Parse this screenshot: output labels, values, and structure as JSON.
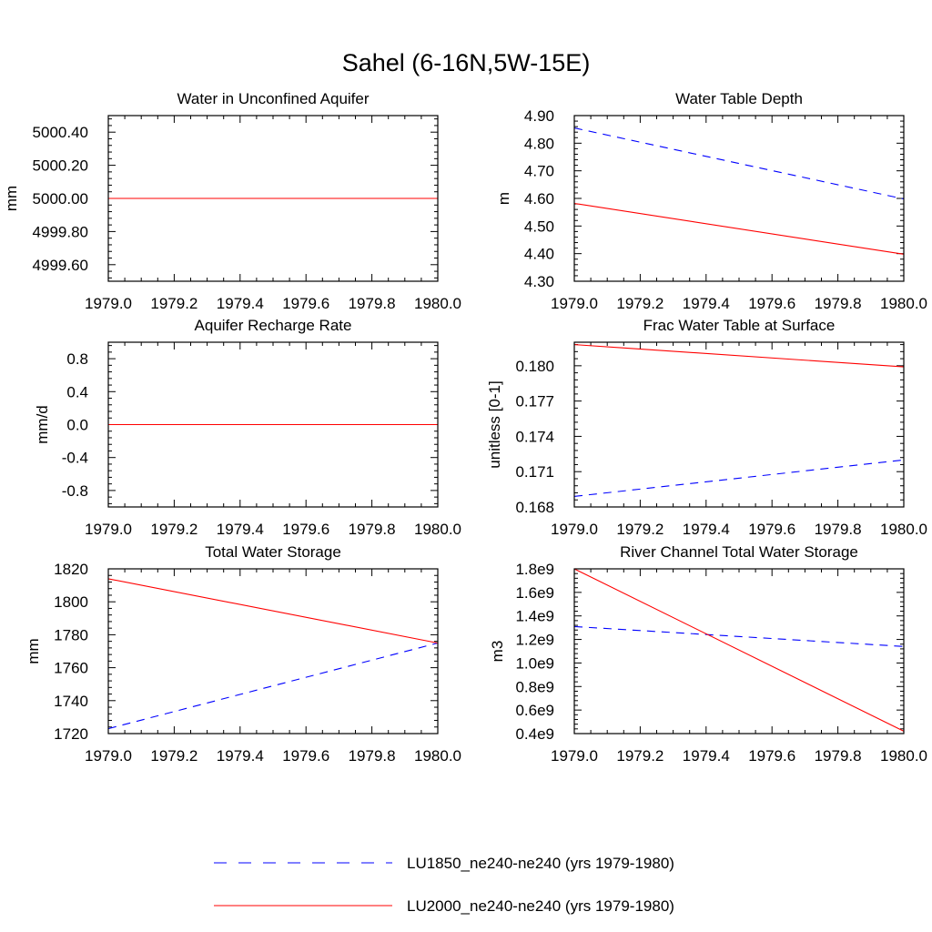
{
  "figure": {
    "title": "Sahel (6-16N,5W-15E)"
  },
  "colors": {
    "LU1850": "#0000ff",
    "LU2000": "#ff0000",
    "axis": "#000000",
    "background": "#ffffff"
  },
  "legend": {
    "placement": "bottom-center",
    "entries": [
      {
        "label": "LU1850_ne240-ne240 (yrs 1979-1980)",
        "color": "#0000ff",
        "style": "dashed"
      },
      {
        "label": "LU2000_ne240-ne240 (yrs 1979-1980)",
        "color": "#ff0000",
        "style": "solid"
      }
    ]
  },
  "chart_data": [
    {
      "type": "line",
      "title": "Water in Unconfined Aquifer",
      "xlabel": "",
      "ylabel": "mm",
      "xlim": [
        1979.0,
        1980.0
      ],
      "ylim": [
        4999.5,
        5000.5
      ],
      "xticks": [
        "1979.0",
        "1979.2",
        "1979.4",
        "1979.6",
        "1979.8",
        "1980.0"
      ],
      "yticks": [
        "4999.60",
        "4999.80",
        "5000.00",
        "5000.20",
        "5000.40"
      ],
      "series": [
        {
          "name": "LU1850_ne240-ne240 (yrs 1979-1980)",
          "x": [
            1979.0,
            1980.0
          ],
          "y": [
            5000.0,
            5000.0
          ]
        },
        {
          "name": "LU2000_ne240-ne240 (yrs 1979-1980)",
          "x": [
            1979.0,
            1980.0
          ],
          "y": [
            5000.0,
            5000.0
          ]
        }
      ]
    },
    {
      "type": "line",
      "title": "Water Table Depth",
      "xlabel": "",
      "ylabel": "m",
      "xlim": [
        1979.0,
        1980.0
      ],
      "ylim": [
        4.3,
        4.9
      ],
      "xticks": [
        "1979.0",
        "1979.2",
        "1979.4",
        "1979.6",
        "1979.8",
        "1980.0"
      ],
      "yticks": [
        "4.30",
        "4.40",
        "4.50",
        "4.60",
        "4.70",
        "4.80",
        "4.90"
      ],
      "series": [
        {
          "name": "LU1850_ne240-ne240 (yrs 1979-1980)",
          "x": [
            1979.0,
            1980.0
          ],
          "y": [
            4.855,
            4.598
          ]
        },
        {
          "name": "LU2000_ne240-ne240 (yrs 1979-1980)",
          "x": [
            1979.0,
            1980.0
          ],
          "y": [
            4.582,
            4.398
          ]
        }
      ]
    },
    {
      "type": "line",
      "title": "Aquifer Recharge Rate",
      "xlabel": "",
      "ylabel": "mm/d",
      "xlim": [
        1979.0,
        1980.0
      ],
      "ylim": [
        -1.0,
        1.0
      ],
      "xticks": [
        "1979.0",
        "1979.2",
        "1979.4",
        "1979.6",
        "1979.8",
        "1980.0"
      ],
      "yticks": [
        "-0.8",
        "-0.4",
        "0.0",
        "0.4",
        "0.8"
      ],
      "series": [
        {
          "name": "LU1850_ne240-ne240 (yrs 1979-1980)",
          "x": [
            1979.0,
            1980.0
          ],
          "y": [
            0.0,
            0.0
          ]
        },
        {
          "name": "LU2000_ne240-ne240 (yrs 1979-1980)",
          "x": [
            1979.0,
            1980.0
          ],
          "y": [
            0.0,
            0.0
          ]
        }
      ]
    },
    {
      "type": "line",
      "title": "Frac Water Table at Surface",
      "xlabel": "",
      "ylabel": "unitless [0-1]",
      "xlim": [
        1979.0,
        1980.0
      ],
      "ylim": [
        0.168,
        0.182
      ],
      "xticks": [
        "1979.0",
        "1979.2",
        "1979.4",
        "1979.6",
        "1979.8",
        "1980.0"
      ],
      "yticks": [
        "0.168",
        "0.171",
        "0.174",
        "0.177",
        "0.180"
      ],
      "series": [
        {
          "name": "LU1850_ne240-ne240 (yrs 1979-1980)",
          "x": [
            1979.0,
            1980.0
          ],
          "y": [
            0.1689,
            0.172
          ]
        },
        {
          "name": "LU2000_ne240-ne240 (yrs 1979-1980)",
          "x": [
            1979.0,
            1980.0
          ],
          "y": [
            0.1818,
            0.1799
          ]
        }
      ]
    },
    {
      "type": "line",
      "title": "Total Water Storage",
      "xlabel": "",
      "ylabel": "mm",
      "xlim": [
        1979.0,
        1980.0
      ],
      "ylim": [
        1720,
        1820
      ],
      "xticks": [
        "1979.0",
        "1979.2",
        "1979.4",
        "1979.6",
        "1979.8",
        "1980.0"
      ],
      "yticks": [
        "1720",
        "1740",
        "1760",
        "1780",
        "1800",
        "1820"
      ],
      "series": [
        {
          "name": "LU1850_ne240-ne240 (yrs 1979-1980)",
          "x": [
            1979.0,
            1980.0
          ],
          "y": [
            1723,
            1775
          ]
        },
        {
          "name": "LU2000_ne240-ne240 (yrs 1979-1980)",
          "x": [
            1979.0,
            1980.0
          ],
          "y": [
            1814,
            1775
          ]
        }
      ]
    },
    {
      "type": "line",
      "title": "River Channel Total Water Storage",
      "xlabel": "",
      "ylabel": "m3",
      "xlim": [
        1979.0,
        1980.0
      ],
      "ylim": [
        400000000.0,
        1800000000.0
      ],
      "xticks": [
        "1979.0",
        "1979.2",
        "1979.4",
        "1979.6",
        "1979.8",
        "1980.0"
      ],
      "yticks": [
        "0.4e9",
        "0.6e9",
        "0.8e9",
        "1.0e9",
        "1.2e9",
        "1.4e9",
        "1.6e9",
        "1.8e9"
      ],
      "series": [
        {
          "name": "LU1850_ne240-ne240 (yrs 1979-1980)",
          "x": [
            1979.0,
            1980.0
          ],
          "y": [
            1310000000.0,
            1140000000.0
          ]
        },
        {
          "name": "LU2000_ne240-ne240 (yrs 1979-1980)",
          "x": [
            1979.0,
            1980.0
          ],
          "y": [
            1800000000.0,
            420000000.0
          ]
        }
      ]
    }
  ]
}
